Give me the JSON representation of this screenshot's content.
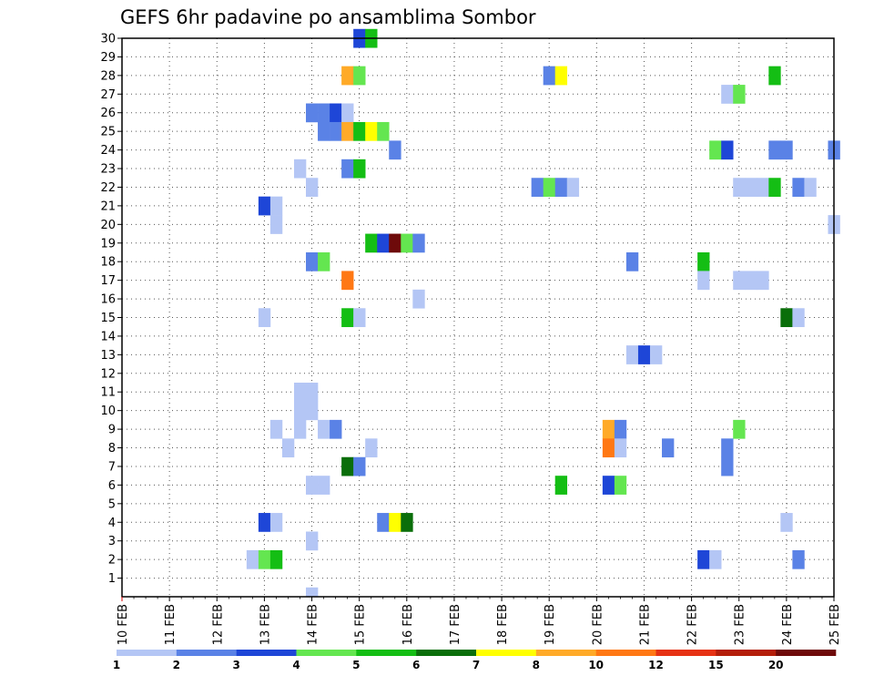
{
  "chart_data": {
    "type": "heatmap",
    "title": "GEFS 6hr padavine po ansamblima Sombor",
    "xlabel": "",
    "ylabel": "",
    "x_ticks": [
      "10 FEB",
      "11 FEB",
      "12 FEB",
      "13 FEB",
      "14 FEB",
      "15 FEB",
      "16 FEB",
      "17 FEB",
      "18 FEB",
      "19 FEB",
      "20 FEB",
      "21 FEB",
      "22 FEB",
      "23 FEB",
      "24 FEB",
      "25 FEB"
    ],
    "y_ticks": [
      "1",
      "2",
      "3",
      "4",
      "5",
      "6",
      "7",
      "8",
      "9",
      "10",
      "11",
      "12",
      "13",
      "14",
      "15",
      "16",
      "17",
      "18",
      "19",
      "20",
      "21",
      "22",
      "23",
      "24",
      "25",
      "26",
      "27",
      "28",
      "29",
      "30"
    ],
    "xlim": [
      0,
      15
    ],
    "ylim": [
      0,
      30
    ],
    "grid": true,
    "legend_position": "bottom",
    "legend": {
      "labels": [
        "1",
        "2",
        "3",
        "4",
        "5",
        "6",
        "7",
        "8",
        "10",
        "12",
        "15",
        "20"
      ],
      "colors": [
        "#b4c6f5",
        "#5a82e6",
        "#1e46d7",
        "#64e650",
        "#14be14",
        "#0a6e0a",
        "#ffff00",
        "#ffaa28",
        "#ff7814",
        "#e63214",
        "#b41e0a",
        "#6e0a0a"
      ]
    },
    "cells": [
      {
        "day": 5.0,
        "member": 30,
        "level": 3
      },
      {
        "day": 5.25,
        "member": 30,
        "level": 5
      },
      {
        "day": 4.75,
        "member": 28,
        "level": 8
      },
      {
        "day": 5.0,
        "member": 28,
        "level": 4
      },
      {
        "day": 9.0,
        "member": 28,
        "level": 2
      },
      {
        "day": 9.25,
        "member": 28,
        "level": 7
      },
      {
        "day": 13.75,
        "member": 28,
        "level": 5
      },
      {
        "day": 12.75,
        "member": 27,
        "level": 1
      },
      {
        "day": 13.0,
        "member": 27,
        "level": 4
      },
      {
        "day": 4.0,
        "member": 26,
        "level": 2
      },
      {
        "day": 4.25,
        "member": 26,
        "level": 2
      },
      {
        "day": 4.5,
        "member": 26,
        "level": 3
      },
      {
        "day": 4.75,
        "member": 26,
        "level": 1
      },
      {
        "day": 4.25,
        "member": 25,
        "level": 2
      },
      {
        "day": 4.5,
        "member": 25,
        "level": 2
      },
      {
        "day": 4.75,
        "member": 25,
        "level": 8
      },
      {
        "day": 5.0,
        "member": 25,
        "level": 5
      },
      {
        "day": 5.25,
        "member": 25,
        "level": 7
      },
      {
        "day": 5.5,
        "member": 25,
        "level": 4
      },
      {
        "day": 5.75,
        "member": 24,
        "level": 2
      },
      {
        "day": 12.5,
        "member": 24,
        "level": 4
      },
      {
        "day": 12.75,
        "member": 24,
        "level": 3
      },
      {
        "day": 13.75,
        "member": 24,
        "level": 2
      },
      {
        "day": 14.0,
        "member": 24,
        "level": 2
      },
      {
        "day": 15.0,
        "member": 24,
        "level": 2
      },
      {
        "day": 3.75,
        "member": 23,
        "level": 1
      },
      {
        "day": 4.75,
        "member": 23,
        "level": 2
      },
      {
        "day": 5.0,
        "member": 23,
        "level": 5
      },
      {
        "day": 4.0,
        "member": 22,
        "level": 1
      },
      {
        "day": 8.75,
        "member": 22,
        "level": 2
      },
      {
        "day": 9.0,
        "member": 22,
        "level": 4
      },
      {
        "day": 9.25,
        "member": 22,
        "level": 2
      },
      {
        "day": 9.5,
        "member": 22,
        "level": 1
      },
      {
        "day": 13.0,
        "member": 22,
        "level": 1
      },
      {
        "day": 13.25,
        "member": 22,
        "level": 1
      },
      {
        "day": 13.5,
        "member": 22,
        "level": 1
      },
      {
        "day": 13.75,
        "member": 22,
        "level": 5
      },
      {
        "day": 14.25,
        "member": 22,
        "level": 2
      },
      {
        "day": 14.5,
        "member": 22,
        "level": 1
      },
      {
        "day": 3.0,
        "member": 21,
        "level": 3
      },
      {
        "day": 3.25,
        "member": 21,
        "level": 1
      },
      {
        "day": 3.25,
        "member": 20,
        "level": 1
      },
      {
        "day": 15.0,
        "member": 20,
        "level": 1
      },
      {
        "day": 5.25,
        "member": 19,
        "level": 5
      },
      {
        "day": 5.5,
        "member": 19,
        "level": 3
      },
      {
        "day": 5.75,
        "member": 19,
        "level": 12
      },
      {
        "day": 6.0,
        "member": 19,
        "level": 4
      },
      {
        "day": 6.25,
        "member": 19,
        "level": 2
      },
      {
        "day": 4.0,
        "member": 18,
        "level": 2
      },
      {
        "day": 4.25,
        "member": 18,
        "level": 4
      },
      {
        "day": 10.75,
        "member": 18,
        "level": 2
      },
      {
        "day": 12.25,
        "member": 18,
        "level": 5
      },
      {
        "day": 4.75,
        "member": 17,
        "level": 9
      },
      {
        "day": 12.25,
        "member": 17,
        "level": 1
      },
      {
        "day": 13.0,
        "member": 17,
        "level": 1
      },
      {
        "day": 13.25,
        "member": 17,
        "level": 1
      },
      {
        "day": 13.5,
        "member": 17,
        "level": 1
      },
      {
        "day": 6.25,
        "member": 16,
        "level": 1
      },
      {
        "day": 3.0,
        "member": 15,
        "level": 1
      },
      {
        "day": 4.75,
        "member": 15,
        "level": 5
      },
      {
        "day": 5.0,
        "member": 15,
        "level": 1
      },
      {
        "day": 14.0,
        "member": 15,
        "level": 6
      },
      {
        "day": 14.25,
        "member": 15,
        "level": 1
      },
      {
        "day": 10.75,
        "member": 13,
        "level": 1
      },
      {
        "day": 11.0,
        "member": 13,
        "level": 3
      },
      {
        "day": 11.25,
        "member": 13,
        "level": 1
      },
      {
        "day": 3.75,
        "member": 11,
        "level": 1
      },
      {
        "day": 4.0,
        "member": 11,
        "level": 1
      },
      {
        "day": 3.75,
        "member": 10,
        "level": 1
      },
      {
        "day": 4.0,
        "member": 10,
        "level": 1
      },
      {
        "day": 3.25,
        "member": 9,
        "level": 1
      },
      {
        "day": 3.75,
        "member": 9,
        "level": 1
      },
      {
        "day": 4.25,
        "member": 9,
        "level": 1
      },
      {
        "day": 4.5,
        "member": 9,
        "level": 2
      },
      {
        "day": 10.25,
        "member": 9,
        "level": 8
      },
      {
        "day": 10.5,
        "member": 9,
        "level": 2
      },
      {
        "day": 13.0,
        "member": 9,
        "level": 4
      },
      {
        "day": 3.5,
        "member": 8,
        "level": 1
      },
      {
        "day": 5.25,
        "member": 8,
        "level": 1
      },
      {
        "day": 10.25,
        "member": 8,
        "level": 9
      },
      {
        "day": 10.5,
        "member": 8,
        "level": 1
      },
      {
        "day": 11.5,
        "member": 8,
        "level": 2
      },
      {
        "day": 12.75,
        "member": 8,
        "level": 2
      },
      {
        "day": 4.75,
        "member": 7,
        "level": 6
      },
      {
        "day": 5.0,
        "member": 7,
        "level": 2
      },
      {
        "day": 12.75,
        "member": 7,
        "level": 2
      },
      {
        "day": 4.0,
        "member": 6,
        "level": 1
      },
      {
        "day": 4.25,
        "member": 6,
        "level": 1
      },
      {
        "day": 9.25,
        "member": 6,
        "level": 5
      },
      {
        "day": 10.25,
        "member": 6,
        "level": 3
      },
      {
        "day": 10.5,
        "member": 6,
        "level": 4
      },
      {
        "day": 3.0,
        "member": 4,
        "level": 3
      },
      {
        "day": 3.25,
        "member": 4,
        "level": 1
      },
      {
        "day": 5.5,
        "member": 4,
        "level": 2
      },
      {
        "day": 5.75,
        "member": 4,
        "level": 7
      },
      {
        "day": 6.0,
        "member": 4,
        "level": 6
      },
      {
        "day": 14.0,
        "member": 4,
        "level": 1
      },
      {
        "day": 4.0,
        "member": 3,
        "level": 1
      },
      {
        "day": 2.75,
        "member": 2,
        "level": 1
      },
      {
        "day": 3.0,
        "member": 2,
        "level": 4
      },
      {
        "day": 3.25,
        "member": 2,
        "level": 5
      },
      {
        "day": 12.25,
        "member": 2,
        "level": 3
      },
      {
        "day": 12.5,
        "member": 2,
        "level": 1
      },
      {
        "day": 14.25,
        "member": 2,
        "level": 2
      },
      {
        "day": 4.0,
        "member": 0,
        "level": 1
      }
    ]
  }
}
